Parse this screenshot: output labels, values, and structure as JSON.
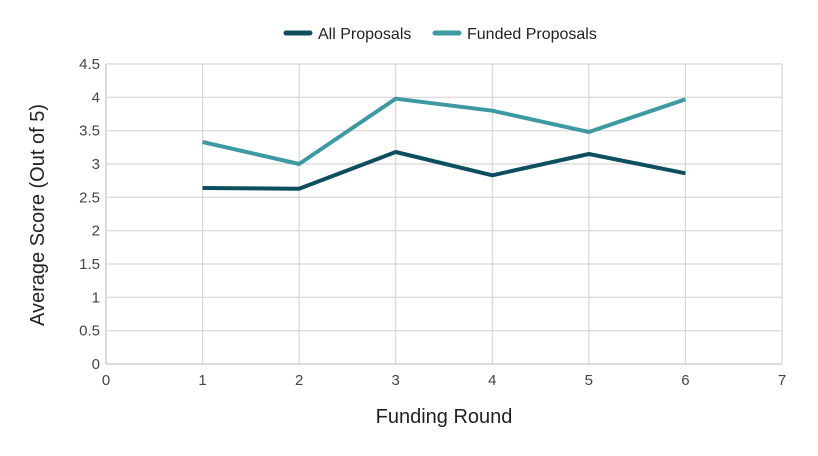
{
  "chart_data": {
    "type": "line",
    "xlabel": "Funding Round",
    "ylabel": "Average Score (Out of 5)",
    "xlim": [
      0,
      7
    ],
    "ylim": [
      0,
      4.5
    ],
    "x_ticks": [
      0,
      1,
      2,
      3,
      4,
      5,
      6,
      7
    ],
    "y_ticks": [
      0,
      0.5,
      1,
      1.5,
      2,
      2.5,
      3,
      3.5,
      4,
      4.5
    ],
    "grid": true,
    "legend_position": "top-center",
    "series": [
      {
        "name": "All Proposals",
        "color": "#0e4f5f",
        "x": [
          1,
          2,
          3,
          4,
          5,
          6
        ],
        "values": [
          2.64,
          2.63,
          3.18,
          2.83,
          3.15,
          2.86
        ]
      },
      {
        "name": "Funded Proposals",
        "color": "#3e9aa2",
        "x": [
          1,
          2,
          3,
          4,
          5,
          6
        ],
        "values": [
          3.33,
          3.0,
          3.98,
          3.8,
          3.48,
          3.97
        ]
      }
    ]
  }
}
